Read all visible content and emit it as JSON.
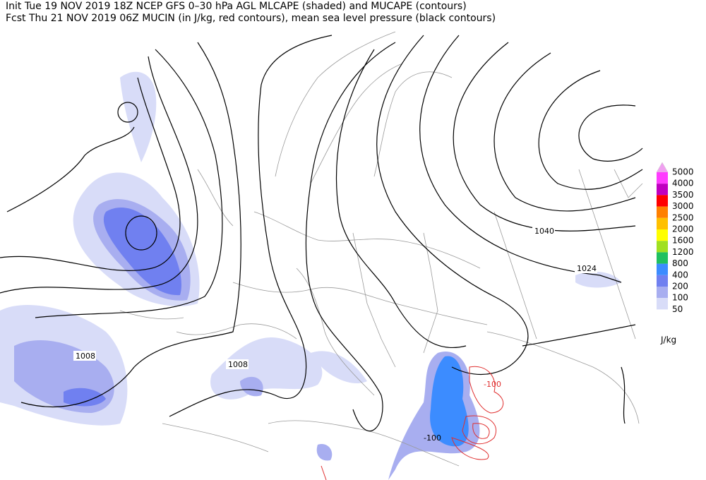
{
  "header": {
    "line1": "Init  Tue 19 NOV 2019 18Z   NCEP GFS 0–30 hPa AGL MLCAPE (shaded) and MUCAPE (contours)",
    "line2": "Fcst Thu 21 NOV 2019 06Z  MUCIN (in J/kg, red contours), mean sea level pressure (black contours)"
  },
  "contour_labels": [
    "1040",
    "1024",
    "1008",
    "1008",
    "-100",
    "-100"
  ],
  "legend": {
    "labels": [
      "5000",
      "4000",
      "3500",
      "3000",
      "2500",
      "2000",
      "1600",
      "1200",
      "800",
      "400",
      "200",
      "100",
      "50"
    ],
    "colors": [
      "#f0a0f0",
      "#ff3cff",
      "#c000c0",
      "#ff0000",
      "#ff8000",
      "#ffc000",
      "#ffff00",
      "#a0e020",
      "#20c060",
      "#3c8cff",
      "#7080f0",
      "#a8aef0",
      "#d8dcf8"
    ],
    "unit": "J/kg"
  }
}
